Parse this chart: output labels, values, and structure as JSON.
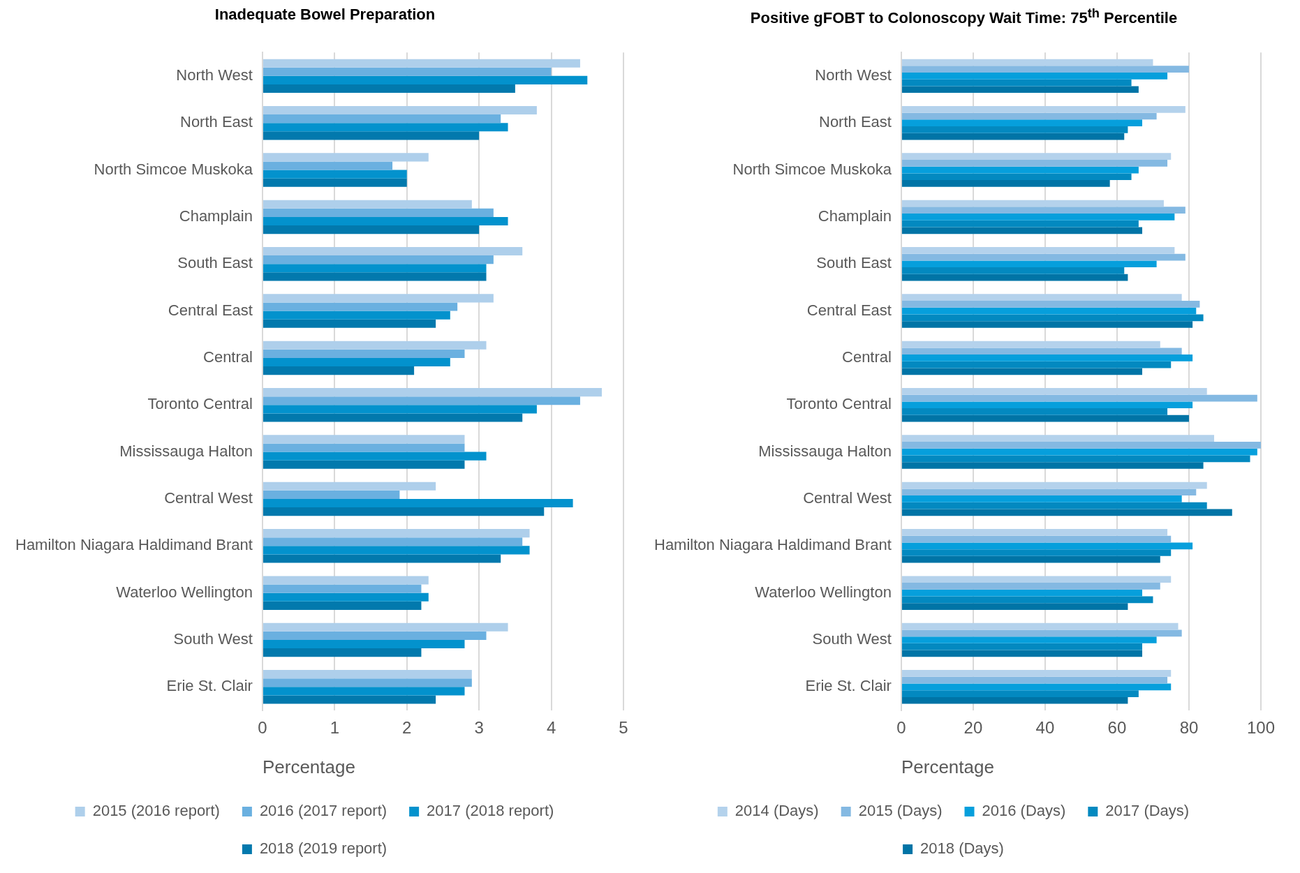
{
  "chart_data": [
    {
      "type": "bar",
      "orientation": "horizontal",
      "title": "Inadequate Bowel Preparation",
      "xlabel": "Percentage",
      "categories": [
        "North West",
        "North East",
        "North Simcoe Muskoka",
        "Champlain",
        "South East",
        "Central East",
        "Central",
        "Toronto Central",
        "Mississauga Halton",
        "Central West",
        "Hamilton Niagara Haldimand Brant",
        "Waterloo Wellington",
        "South West",
        "Erie St. Clair"
      ],
      "series": [
        {
          "name": "2015 (2016 report)",
          "color": "#aecfeb",
          "values": [
            4.4,
            3.8,
            2.3,
            2.9,
            3.6,
            3.2,
            3.1,
            4.7,
            2.8,
            2.4,
            3.7,
            2.3,
            3.4,
            2.9
          ]
        },
        {
          "name": "2016 (2017 report)",
          "color": "#6ab0e0",
          "values": [
            4.0,
            3.3,
            1.8,
            3.2,
            3.2,
            2.7,
            2.8,
            4.4,
            2.8,
            1.9,
            3.6,
            2.2,
            3.1,
            2.9
          ]
        },
        {
          "name": "2017 (2018 report)",
          "color": "#0392cd",
          "values": [
            4.5,
            3.4,
            2.0,
            3.4,
            3.1,
            2.6,
            2.6,
            3.8,
            3.1,
            4.3,
            3.7,
            2.3,
            2.8,
            2.8
          ]
        },
        {
          "name": "2018 (2019 report)",
          "color": "#0279ad",
          "values": [
            3.5,
            3.0,
            2.0,
            3.0,
            3.1,
            2.4,
            2.1,
            3.6,
            2.8,
            3.9,
            3.3,
            2.2,
            2.2,
            2.4
          ]
        }
      ],
      "xlim": [
        0,
        5
      ],
      "xticks": [
        0,
        1,
        2,
        3,
        4,
        5
      ],
      "grid": "x",
      "legend": "bottom"
    },
    {
      "type": "bar",
      "orientation": "horizontal",
      "title": "Positive gFOBT to Colonoscopy Wait Time: 75$^{th}$ Percentile",
      "xlabel": "Percentage",
      "categories": [
        "North West",
        "North East",
        "North Simcoe Muskoka",
        "Champlain",
        "South East",
        "Central East",
        "Central",
        "Toronto Central",
        "Mississauga Halton",
        "Central West",
        "Hamilton Niagara Haldimand Brant",
        "Waterloo Wellington",
        "South West",
        "Erie St. Clair"
      ],
      "series": [
        {
          "name": "2014 (Days)",
          "color": "#b4d2ec",
          "values": [
            70,
            79,
            75,
            73,
            76,
            78,
            72,
            85,
            87,
            85,
            74,
            75,
            77,
            75
          ]
        },
        {
          "name": "2015 (Days)",
          "color": "#84b9e2",
          "values": [
            80,
            71,
            74,
            79,
            79,
            83,
            78,
            99,
            100,
            82,
            75,
            72,
            78,
            74
          ]
        },
        {
          "name": "2016 (Days)",
          "color": "#069fdc",
          "values": [
            74,
            67,
            66,
            76,
            71,
            82,
            81,
            81,
            99,
            78,
            81,
            67,
            71,
            75
          ]
        },
        {
          "name": "2017 (Days)",
          "color": "#0389c0",
          "values": [
            64,
            63,
            64,
            66,
            62,
            84,
            75,
            74,
            97,
            85,
            75,
            70,
            67,
            66
          ]
        },
        {
          "name": "2018 (Days)",
          "color": "#0074a6",
          "values": [
            66,
            62,
            58,
            67,
            63,
            81,
            67,
            80,
            84,
            92,
            72,
            63,
            67,
            63
          ]
        }
      ],
      "xlim": [
        0,
        100
      ],
      "xticks": [
        0,
        20,
        40,
        60,
        80,
        100
      ],
      "grid": "x",
      "legend": "bottom"
    }
  ]
}
